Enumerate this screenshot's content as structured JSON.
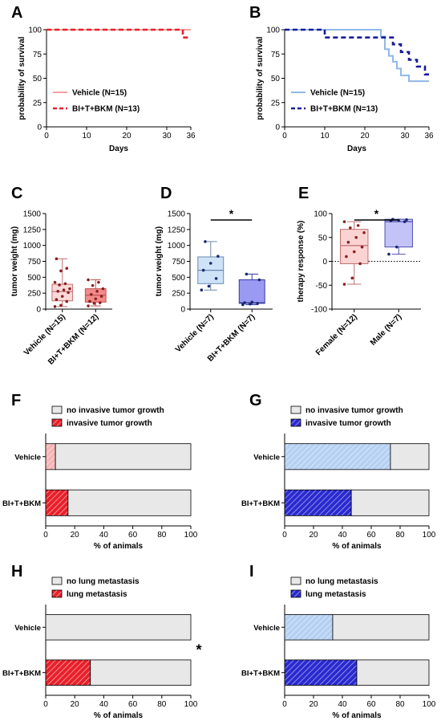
{
  "chart_data": [
    {
      "panel": "A",
      "type": "line",
      "survival": true,
      "xlabel": "Days",
      "ylabel": "probability of survival",
      "xlim": [
        0,
        36
      ],
      "ylim": [
        0,
        100
      ],
      "xticks": [
        0,
        10,
        20,
        30,
        36
      ],
      "yticks": [
        0,
        25,
        50,
        75,
        100
      ],
      "legend": "bottom-left",
      "series": [
        {
          "name": "Vehicle (N=15)",
          "color": "#f4a0a0",
          "style": "solid",
          "x": [
            0,
            36
          ],
          "y": [
            100,
            100
          ]
        },
        {
          "name": "BI+T+BKM (N=13)",
          "color": "#e8202a",
          "style": "dashed",
          "x": [
            0,
            33,
            34,
            36
          ],
          "y": [
            100,
            100,
            92,
            92
          ]
        }
      ]
    },
    {
      "panel": "B",
      "type": "line",
      "survival": true,
      "xlabel": "Days",
      "ylabel": "probability of survival",
      "xlim": [
        0,
        36
      ],
      "ylim": [
        0,
        100
      ],
      "xticks": [
        0,
        10,
        20,
        30,
        36
      ],
      "yticks": [
        0,
        25,
        50,
        75,
        100
      ],
      "legend": "bottom-left",
      "series": [
        {
          "name": "Vehicle (N=15)",
          "color": "#8fb8e8",
          "style": "solid",
          "x": [
            0,
            23,
            24,
            25,
            26,
            27,
            28,
            29,
            31,
            36
          ],
          "y": [
            100,
            100,
            93,
            80,
            73,
            67,
            60,
            53,
            47,
            47
          ]
        },
        {
          "name": "BI+T+BKM (N=13)",
          "color": "#1a1a9a",
          "style": "dashed",
          "x": [
            0,
            10,
            24,
            27,
            29,
            31,
            33,
            35,
            36
          ],
          "y": [
            100,
            92,
            92,
            85,
            77,
            69,
            62,
            54,
            54
          ]
        }
      ]
    },
    {
      "panel": "C",
      "type": "box",
      "ylabel": "tumor weight (mg)",
      "ylim": [
        0,
        1500
      ],
      "yticks": [
        0,
        250,
        500,
        750,
        1000,
        1250,
        1500
      ],
      "categories": [
        "Vehicle (N=15)",
        "BI+T+BKM (N=12)"
      ],
      "boxes": [
        {
          "min": 40,
          "q1": 130,
          "median": 275,
          "q3": 390,
          "max": 790,
          "fill": "#fbd9d9",
          "stroke": "#c07070"
        },
        {
          "min": 50,
          "q1": 110,
          "median": 220,
          "q3": 320,
          "max": 460,
          "fill": "#f28a8a",
          "stroke": "#c05050"
        }
      ],
      "points": [
        [
          40,
          60,
          120,
          150,
          200,
          260,
          280,
          300,
          320,
          380,
          400,
          420,
          600,
          640,
          790
        ],
        [
          50,
          90,
          100,
          120,
          160,
          200,
          230,
          280,
          320,
          370,
          420,
          460
        ]
      ],
      "point_color": "#8a2020"
    },
    {
      "panel": "D",
      "type": "box",
      "ylabel": "tumor weight (mg)",
      "ylim": [
        0,
        1500
      ],
      "yticks": [
        0,
        250,
        500,
        750,
        1000,
        1250,
        1500
      ],
      "categories": [
        "Vehicle (N=7)",
        "BI+T+BKM (N=7)"
      ],
      "significance": "*",
      "boxes": [
        {
          "min": 300,
          "q1": 400,
          "median": 610,
          "q3": 820,
          "max": 1060,
          "fill": "#cfe3f8",
          "stroke": "#6a8ab0"
        },
        {
          "min": 70,
          "q1": 90,
          "median": 100,
          "q3": 460,
          "max": 550,
          "fill": "#9a9af2",
          "stroke": "#3a3aa0"
        }
      ],
      "points": [
        [
          300,
          360,
          480,
          610,
          720,
          830,
          1060
        ],
        [
          70,
          80,
          90,
          100,
          110,
          460,
          550
        ]
      ],
      "point_color": "#1a2a70"
    },
    {
      "panel": "E",
      "type": "box",
      "ylabel": "therapy response (%)",
      "ylim": [
        -100,
        100
      ],
      "yticks": [
        -100,
        -50,
        0,
        50,
        100
      ],
      "categories": [
        "Female (N=12)",
        "Male (N=7)"
      ],
      "significance": "*",
      "refline": 0,
      "boxes": [
        {
          "min": -48,
          "q1": -5,
          "median": 33,
          "q3": 67,
          "max": 83,
          "fill": "#fbd3d3",
          "stroke": "#c07070"
        },
        {
          "min": 15,
          "q1": 30,
          "median": 83,
          "q3": 88,
          "max": 88,
          "fill": "#c3c3f8",
          "stroke": "#5050b0"
        }
      ],
      "points": [
        [
          -48,
          -35,
          -5,
          10,
          20,
          30,
          40,
          50,
          60,
          70,
          75,
          83
        ],
        [
          15,
          30,
          83,
          85,
          86,
          87,
          88
        ]
      ],
      "point_colors": [
        "#8a2020",
        "#1a2a70"
      ]
    },
    {
      "panel": "F",
      "type": "bar",
      "orientation": "horizontal",
      "stacked": true,
      "xlabel": "% of animals",
      "xlim": [
        0,
        100
      ],
      "xticks": [
        0,
        20,
        40,
        60,
        80,
        100
      ],
      "categories": [
        "Vehicle",
        "BI+T+BKM"
      ],
      "legend": "top-left",
      "series": [
        {
          "name": "invasive tumor growth",
          "values": [
            6.7,
            15.4
          ],
          "color": "#e8202a",
          "pale": "#f8b0b0"
        },
        {
          "name": "no invasive tumor growth",
          "values": [
            93.3,
            84.6
          ],
          "color": "#e8e8e8"
        }
      ]
    },
    {
      "panel": "G",
      "type": "bar",
      "orientation": "horizontal",
      "stacked": true,
      "xlabel": "% of animals",
      "xlim": [
        0,
        100
      ],
      "xticks": [
        0,
        20,
        40,
        60,
        80,
        100
      ],
      "categories": [
        "Vehicle",
        "BI+T+BKM"
      ],
      "legend": "top-left",
      "series": [
        {
          "name": "invasive tumor growth",
          "values": [
            73.3,
            46.2
          ],
          "color": "#2a2ad0",
          "pale": "#a8c8f0"
        },
        {
          "name": "no invasive tumor growth",
          "values": [
            26.7,
            53.8
          ],
          "color": "#e8e8e8"
        }
      ]
    },
    {
      "panel": "H",
      "type": "bar",
      "orientation": "horizontal",
      "stacked": true,
      "xlabel": "% of animals",
      "xlim": [
        0,
        100
      ],
      "xticks": [
        0,
        20,
        40,
        60,
        80,
        100
      ],
      "categories": [
        "Vehicle",
        "BI+T+BKM"
      ],
      "legend": "top-left",
      "significance": "*",
      "series": [
        {
          "name": "lung metastasis",
          "values": [
            0,
            30.8
          ],
          "color": "#e8202a",
          "pale": "#f8b0b0"
        },
        {
          "name": "no lung metastasis",
          "values": [
            100,
            69.2
          ],
          "color": "#e8e8e8"
        }
      ]
    },
    {
      "panel": "I",
      "type": "bar",
      "orientation": "horizontal",
      "stacked": true,
      "xlabel": "% of animals",
      "xlim": [
        0,
        100
      ],
      "xticks": [
        0,
        20,
        40,
        60,
        80,
        100
      ],
      "categories": [
        "Vehicle",
        "BI+T+BKM"
      ],
      "legend": "top-left",
      "series": [
        {
          "name": "lung metastasis",
          "values": [
            33.3,
            50
          ],
          "color": "#2a2ad0",
          "pale": "#a8c8f0"
        },
        {
          "name": "no lung metastasis",
          "values": [
            66.7,
            50
          ],
          "color": "#e8e8e8"
        }
      ]
    }
  ]
}
